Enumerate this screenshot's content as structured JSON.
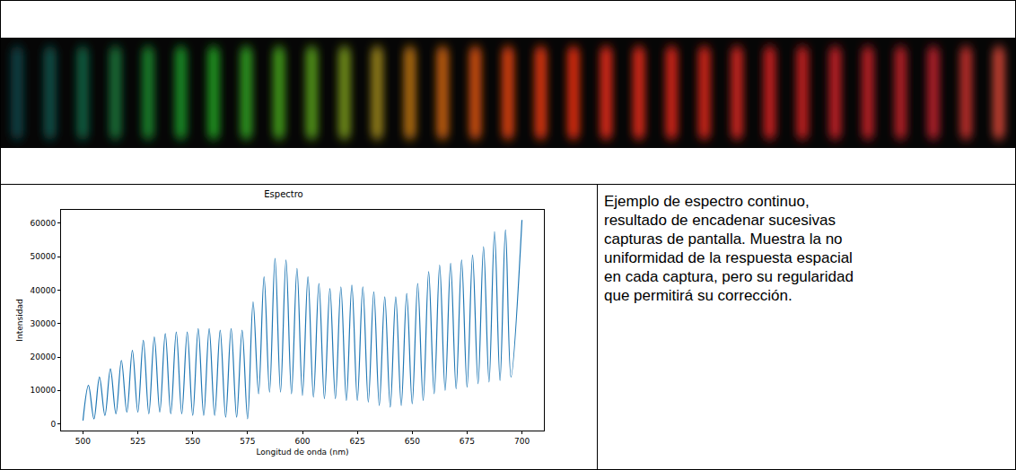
{
  "chart_data": {
    "type": "line",
    "title": "Espectro",
    "x_label": "Longitud de onda (nm)",
    "y_label": "Intensidad",
    "x": [
      500,
      502.5,
      505,
      507.5,
      510,
      512.5,
      515,
      517.5,
      520,
      522.5,
      525,
      527.5,
      530,
      532.5,
      535,
      537.5,
      540,
      542.5,
      545,
      547.5,
      550,
      552.5,
      555,
      557.5,
      560,
      562.5,
      565,
      567.5,
      570,
      572.5,
      575,
      577.5,
      580,
      582.5,
      585,
      587.5,
      590,
      592.5,
      595,
      597.5,
      600,
      602.5,
      605,
      607.5,
      610,
      612.5,
      615,
      617.5,
      620,
      622.5,
      625,
      627.5,
      630,
      632.5,
      635,
      637.5,
      640,
      642.5,
      645,
      647.5,
      650,
      652.5,
      655,
      657.5,
      660,
      662.5,
      665,
      667.5,
      670,
      672.5,
      675,
      677.5,
      680,
      682.5,
      685,
      687.5,
      690,
      692.5,
      695,
      700
    ],
    "values": [
      1000,
      11500,
      1500,
      14000,
      2500,
      16500,
      3000,
      19000,
      3500,
      22000,
      3500,
      25000,
      3000,
      26000,
      3500,
      27000,
      3000,
      27500,
      3000,
      27500,
      2500,
      28500,
      2500,
      28500,
      2500,
      28000,
      2000,
      28500,
      2000,
      28000,
      1500,
      36500,
      9000,
      44000,
      9500,
      49500,
      9500,
      49000,
      9000,
      46500,
      8500,
      44000,
      8000,
      42000,
      7500,
      40500,
      7500,
      41000,
      7000,
      41500,
      7000,
      41000,
      6500,
      39500,
      5500,
      38000,
      5000,
      38000,
      5500,
      39000,
      6000,
      42000,
      7000,
      45500,
      9000,
      47500,
      10000,
      48000,
      10500,
      49000,
      11000,
      50500,
      12000,
      53000,
      12500,
      57500,
      13000,
      58000,
      14000,
      61000
    ],
    "color": "#1f77b4",
    "xlim": [
      490,
      710
    ],
    "xticks": [
      500,
      525,
      550,
      575,
      600,
      625,
      650,
      675,
      700
    ],
    "ylim": [
      -2000,
      64000
    ],
    "yticks": [
      0,
      10000,
      20000,
      30000,
      40000,
      50000,
      60000
    ],
    "grid": false
  },
  "strip_colors": [
    "#0b3b3c",
    "#0d4640",
    "#10553a",
    "#126430",
    "#157228",
    "#197e22",
    "#1e861e",
    "#2a881b",
    "#3a8818",
    "#4c8616",
    "#668014",
    "#847212",
    "#9e620f",
    "#ae540d",
    "#b8460c",
    "#c03a0c",
    "#c4320e",
    "#c62c10",
    "#c42812",
    "#c22614",
    "#be2416",
    "#ba2218",
    "#b6201a",
    "#b21e1c",
    "#ae1c1e",
    "#aa1c20",
    "#a61c22",
    "#a21c24",
    "#a01c26",
    "#a82a28",
    "#b03a2e"
  ],
  "caption": "Ejemplo de espectro continuo, resultado de encadenar sucesivas capturas de pantalla. Muestra la no uniformidad de la respuesta espacial en cada captura, pero su regularidad que permitirá su corrección."
}
